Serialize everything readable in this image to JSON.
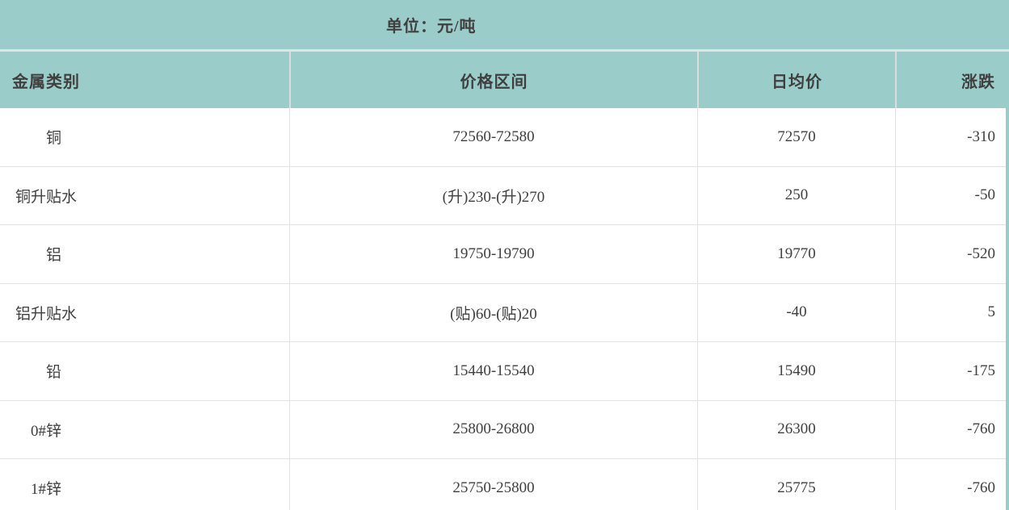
{
  "page": {
    "unit_label": "单位：元/吨"
  },
  "colors": {
    "accent_teal": "#9ACCC9",
    "divider": "#e2e2e2",
    "text": "#3f3f3f",
    "row_background": "#ffffff"
  },
  "table": {
    "columns": [
      {
        "label": "金属类别"
      },
      {
        "label": "价格区间"
      },
      {
        "label": "日均价"
      },
      {
        "label": "涨跌"
      }
    ],
    "rows": [
      {
        "cells": [
          "　　铜",
          "72560-72580",
          "72570",
          "-310"
        ]
      },
      {
        "cells": [
          "铜升贴水",
          "(升)230-(升)270",
          "250",
          "-50"
        ]
      },
      {
        "cells": [
          "　　铝",
          "19750-19790",
          "19770",
          "-520"
        ]
      },
      {
        "cells": [
          "铝升贴水",
          "(贴)60-(贴)20",
          "-40",
          "5"
        ]
      },
      {
        "cells": [
          "　　铅",
          "15440-15540",
          "15490",
          "-175"
        ]
      },
      {
        "cells": [
          "　0#锌",
          "25800-26800",
          "26300",
          "-760"
        ]
      },
      {
        "cells": [
          "　1#锌",
          "25750-25800",
          "25775",
          "-760"
        ]
      }
    ]
  },
  "chart_data": {
    "type": "table",
    "title": "单位：元/吨",
    "columns": [
      "金属类别",
      "价格区间",
      "日均价",
      "涨跌"
    ],
    "rows": [
      [
        "铜",
        "72560-72580",
        72570,
        -310
      ],
      [
        "铜升贴水",
        "(升)230-(升)270",
        250,
        -50
      ],
      [
        "铝",
        "19750-19790",
        19770,
        -520
      ],
      [
        "铝升贴水",
        "(贴)60-(贴)20",
        -40,
        5
      ],
      [
        "铅",
        "15440-15540",
        15490,
        -175
      ],
      [
        "0#锌",
        "25800-26800",
        26300,
        -760
      ],
      [
        "1#锌",
        "25750-25800",
        25775,
        -760
      ]
    ]
  }
}
